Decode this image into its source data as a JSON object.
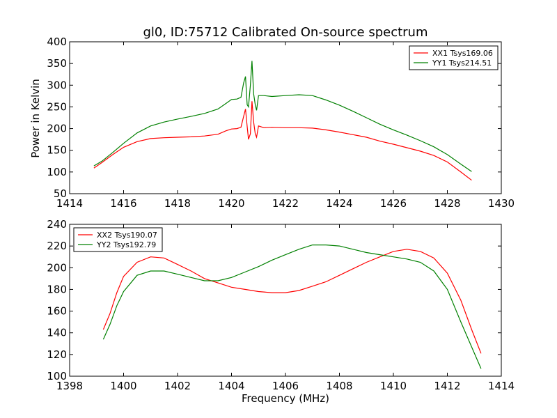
{
  "chart_data": [
    {
      "type": "line",
      "title": "gl0, ID:75712 Calibrated On-source spectrum",
      "xlabel": "",
      "ylabel": "Power in Kelvin",
      "xlim": [
        1414,
        1430
      ],
      "ylim": [
        50,
        400
      ],
      "xticks": [
        1414,
        1416,
        1418,
        1420,
        1422,
        1424,
        1426,
        1428,
        1430
      ],
      "yticks": [
        50,
        100,
        150,
        200,
        250,
        300,
        350,
        400
      ],
      "legend": "top-right",
      "series": [
        {
          "name": "XX1 Tsys169.06",
          "color": "#ff0000",
          "points": [
            [
              1414.9,
              109
            ],
            [
              1415.2,
              122
            ],
            [
              1415.6,
              140
            ],
            [
              1416.0,
              157
            ],
            [
              1416.5,
              170
            ],
            [
              1417.0,
              177
            ],
            [
              1417.5,
              179
            ],
            [
              1418.0,
              180
            ],
            [
              1418.5,
              181
            ],
            [
              1419.0,
              183
            ],
            [
              1419.5,
              187
            ],
            [
              1419.8,
              195
            ],
            [
              1420.0,
              199
            ],
            [
              1420.2,
              200
            ],
            [
              1420.35,
              203
            ],
            [
              1420.45,
              228
            ],
            [
              1420.52,
              245
            ],
            [
              1420.58,
              205
            ],
            [
              1420.63,
              175
            ],
            [
              1420.7,
              188
            ],
            [
              1420.76,
              263
            ],
            [
              1420.82,
              215
            ],
            [
              1420.88,
              188
            ],
            [
              1420.93,
              180
            ],
            [
              1421.0,
              206
            ],
            [
              1421.2,
              202
            ],
            [
              1421.5,
              203
            ],
            [
              1422.0,
              202
            ],
            [
              1422.5,
              202
            ],
            [
              1423.0,
              201
            ],
            [
              1423.5,
              197
            ],
            [
              1424.0,
              192
            ],
            [
              1424.5,
              186
            ],
            [
              1425.0,
              180
            ],
            [
              1425.5,
              171
            ],
            [
              1426.0,
              164
            ],
            [
              1426.5,
              156
            ],
            [
              1427.0,
              148
            ],
            [
              1427.5,
              138
            ],
            [
              1428.0,
              123
            ],
            [
              1428.5,
              100
            ],
            [
              1428.9,
              81
            ]
          ]
        },
        {
          "name": "YY1 Tsys214.51",
          "color": "#008000",
          "points": [
            [
              1414.9,
              114
            ],
            [
              1415.2,
              125
            ],
            [
              1415.6,
              145
            ],
            [
              1416.0,
              166
            ],
            [
              1416.5,
              190
            ],
            [
              1417.0,
              206
            ],
            [
              1417.5,
              215
            ],
            [
              1418.0,
              222
            ],
            [
              1418.5,
              228
            ],
            [
              1419.0,
              235
            ],
            [
              1419.5,
              245
            ],
            [
              1419.8,
              258
            ],
            [
              1420.0,
              267
            ],
            [
              1420.2,
              268
            ],
            [
              1420.35,
              272
            ],
            [
              1420.45,
              305
            ],
            [
              1420.52,
              320
            ],
            [
              1420.58,
              255
            ],
            [
              1420.63,
              250
            ],
            [
              1420.7,
              300
            ],
            [
              1420.76,
              356
            ],
            [
              1420.82,
              280
            ],
            [
              1420.88,
              255
            ],
            [
              1420.93,
              242
            ],
            [
              1421.0,
              276
            ],
            [
              1421.2,
              276
            ],
            [
              1421.5,
              274
            ],
            [
              1422.0,
              276
            ],
            [
              1422.5,
              278
            ],
            [
              1423.0,
              276
            ],
            [
              1423.5,
              266
            ],
            [
              1424.0,
              254
            ],
            [
              1424.5,
              240
            ],
            [
              1425.0,
              225
            ],
            [
              1425.5,
              210
            ],
            [
              1426.0,
              197
            ],
            [
              1426.5,
              185
            ],
            [
              1427.0,
              172
            ],
            [
              1427.5,
              158
            ],
            [
              1428.0,
              140
            ],
            [
              1428.5,
              118
            ],
            [
              1428.9,
              101
            ]
          ]
        }
      ]
    },
    {
      "type": "line",
      "title": "",
      "xlabel": "Frequency (MHz)",
      "ylabel": "",
      "xlim": [
        1398,
        1414
      ],
      "ylim": [
        100,
        240
      ],
      "xticks": [
        1398,
        1400,
        1402,
        1404,
        1406,
        1408,
        1410,
        1412,
        1414
      ],
      "yticks": [
        100,
        120,
        140,
        160,
        180,
        200,
        220,
        240
      ],
      "legend": "top-left",
      "series": [
        {
          "name": "XX2 Tsys190.07",
          "color": "#ff0000",
          "points": [
            [
              1399.25,
              143
            ],
            [
              1399.5,
              158
            ],
            [
              1399.75,
              177
            ],
            [
              1400.0,
              192
            ],
            [
              1400.5,
              205
            ],
            [
              1401.0,
              210
            ],
            [
              1401.5,
              209
            ],
            [
              1402.0,
              203
            ],
            [
              1402.5,
              197
            ],
            [
              1403.0,
              190
            ],
            [
              1403.5,
              186
            ],
            [
              1404.0,
              182
            ],
            [
              1404.5,
              180
            ],
            [
              1405.0,
              178
            ],
            [
              1405.5,
              177
            ],
            [
              1406.0,
              177
            ],
            [
              1406.5,
              179
            ],
            [
              1407.0,
              183
            ],
            [
              1407.5,
              187
            ],
            [
              1408.0,
              193
            ],
            [
              1408.5,
              199
            ],
            [
              1409.0,
              205
            ],
            [
              1409.5,
              210
            ],
            [
              1410.0,
              215
            ],
            [
              1410.5,
              217
            ],
            [
              1411.0,
              215
            ],
            [
              1411.5,
              209
            ],
            [
              1412.0,
              195
            ],
            [
              1412.5,
              170
            ],
            [
              1412.9,
              143
            ],
            [
              1413.25,
              121
            ]
          ]
        },
        {
          "name": "YY2 Tsys192.79",
          "color": "#008000",
          "points": [
            [
              1399.25,
              134
            ],
            [
              1399.5,
              148
            ],
            [
              1399.75,
              165
            ],
            [
              1400.0,
              178
            ],
            [
              1400.5,
              193
            ],
            [
              1401.0,
              197
            ],
            [
              1401.5,
              197
            ],
            [
              1402.0,
              194
            ],
            [
              1402.5,
              191
            ],
            [
              1403.0,
              188
            ],
            [
              1403.5,
              188
            ],
            [
              1404.0,
              191
            ],
            [
              1404.5,
              196
            ],
            [
              1405.0,
              201
            ],
            [
              1405.5,
              207
            ],
            [
              1406.0,
              212
            ],
            [
              1406.5,
              217
            ],
            [
              1407.0,
              221
            ],
            [
              1407.5,
              221
            ],
            [
              1408.0,
              220
            ],
            [
              1408.5,
              217
            ],
            [
              1409.0,
              214
            ],
            [
              1409.5,
              212
            ],
            [
              1410.0,
              210
            ],
            [
              1410.5,
              208
            ],
            [
              1411.0,
              205
            ],
            [
              1411.5,
              197
            ],
            [
              1412.0,
              180
            ],
            [
              1412.5,
              150
            ],
            [
              1412.9,
              127
            ],
            [
              1413.25,
              107
            ]
          ]
        }
      ]
    }
  ]
}
